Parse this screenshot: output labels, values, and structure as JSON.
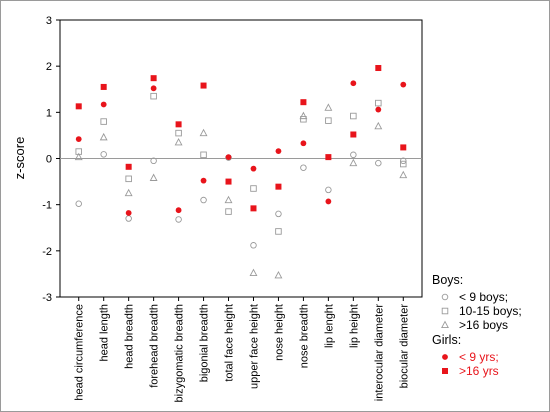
{
  "chart_data": {
    "type": "scatter",
    "ylabel": "z-score",
    "xlabel": "",
    "ylim": [
      -3,
      3
    ],
    "yticks": [
      "3",
      "2",
      "1",
      "0",
      "-1",
      "-2",
      "-3"
    ],
    "zero_line": true,
    "grid": false,
    "legend_placement": "right",
    "categories": [
      "head circumference",
      "head length",
      "head breadth",
      "forehead breadth",
      "bizygomatic breadth",
      "bigonial breadth",
      "total face height",
      "upper face height",
      "nose height",
      "nose breadth",
      "lip lenght",
      "lip height",
      "interocular diameter",
      "biocular diameter"
    ],
    "legend_groups": [
      {
        "title": "Boys:",
        "entries": [
          {
            "series": "boys_lt9",
            "label": "< 9 boys;"
          },
          {
            "series": "boys_10_15",
            "label": "10-15 boys;"
          },
          {
            "series": "boys_gt16",
            "label": ">16 boys"
          }
        ]
      },
      {
        "title": "Girls:",
        "entries": [
          {
            "series": "girls_lt9",
            "label": "< 9 yrs;"
          },
          {
            "series": "girls_gt16",
            "label": ">16 yrs"
          }
        ]
      }
    ],
    "series": [
      {
        "id": "boys_lt9",
        "marker": "circle-open",
        "color": "#9a9a9a",
        "values": [
          -0.98,
          0.09,
          -1.3,
          -0.05,
          -1.32,
          -0.9,
          0.02,
          -1.88,
          -1.2,
          -0.2,
          -0.68,
          0.08,
          -0.1,
          -0.05
        ]
      },
      {
        "id": "boys_10_15",
        "marker": "square-open",
        "color": "#9a9a9a",
        "values": [
          0.15,
          0.8,
          -0.44,
          1.35,
          0.55,
          0.08,
          -1.15,
          -0.65,
          -1.58,
          0.85,
          0.82,
          0.92,
          1.2,
          -0.12
        ]
      },
      {
        "id": "boys_gt16",
        "marker": "triangle-open",
        "color": "#9a9a9a",
        "values": [
          0.03,
          0.46,
          -0.75,
          -0.42,
          0.35,
          0.55,
          -0.9,
          -2.48,
          -2.53,
          0.92,
          1.1,
          -0.1,
          0.7,
          -0.36
        ]
      },
      {
        "id": "girls_lt9",
        "marker": "circle-filled",
        "color": "#e8141b",
        "values": [
          0.42,
          1.17,
          -1.18,
          1.52,
          -1.12,
          -0.48,
          0.03,
          -0.22,
          0.16,
          0.33,
          -0.93,
          1.63,
          1.06,
          1.6
        ]
      },
      {
        "id": "girls_gt16",
        "marker": "square-filled",
        "color": "#e8141b",
        "values": [
          1.13,
          1.55,
          -0.18,
          1.74,
          0.74,
          1.58,
          -0.5,
          -1.08,
          -0.61,
          1.22,
          0.03,
          0.52,
          1.96,
          0.24
        ]
      }
    ]
  }
}
